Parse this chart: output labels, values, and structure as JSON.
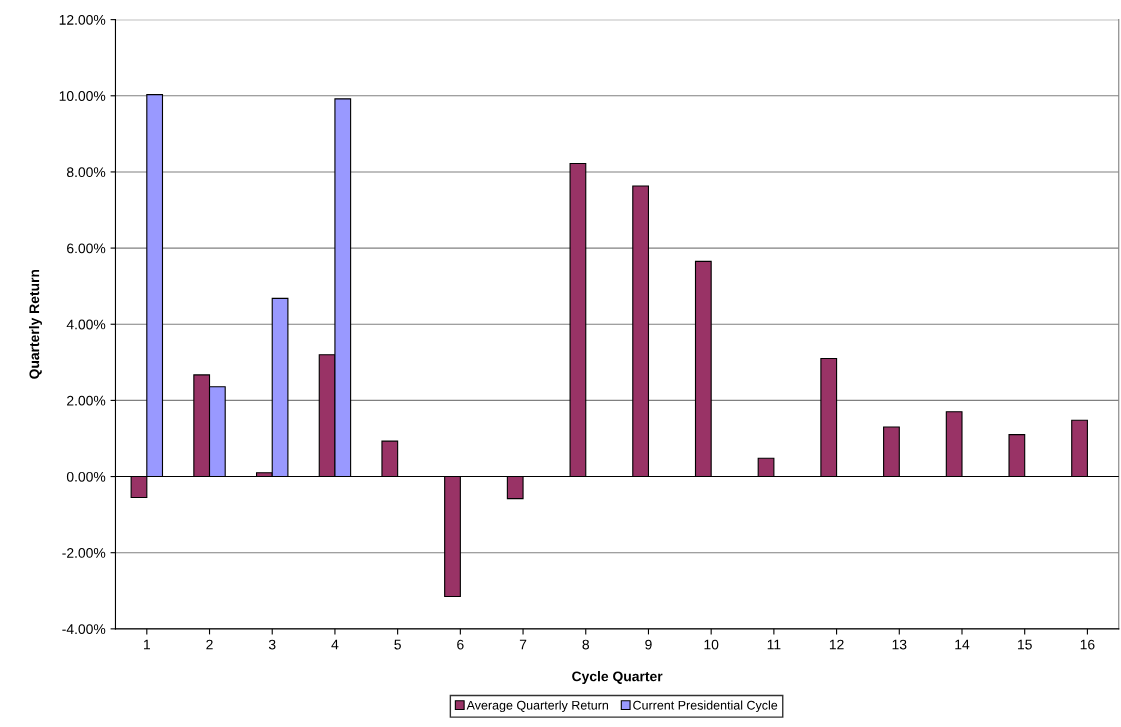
{
  "chart_data": {
    "type": "bar",
    "xlabel": "Cycle Quarter",
    "ylabel": "Quarterly Return",
    "categories": [
      "1",
      "2",
      "3",
      "4",
      "5",
      "6",
      "7",
      "8",
      "9",
      "10",
      "11",
      "12",
      "13",
      "14",
      "15",
      "16"
    ],
    "series": [
      {
        "name": "Average Quarterly Return",
        "color": "#993366",
        "values": [
          -0.55,
          2.67,
          0.1,
          3.2,
          0.93,
          -3.15,
          -0.58,
          8.22,
          7.63,
          5.65,
          0.48,
          3.1,
          1.3,
          1.7,
          1.1,
          1.48
        ]
      },
      {
        "name": "Current Presidential Cycle",
        "color": "#9999ff",
        "values": [
          10.03,
          2.36,
          4.68,
          9.92,
          null,
          null,
          null,
          null,
          null,
          null,
          null,
          null,
          null,
          null,
          null,
          null
        ]
      }
    ],
    "ylim": [
      -4,
      12
    ],
    "yticks": [
      {
        "value": -4,
        "label": "-4.00%"
      },
      {
        "value": -2,
        "label": "-2.00%"
      },
      {
        "value": 0,
        "label": "0.00%"
      },
      {
        "value": 2,
        "label": "2.00%"
      },
      {
        "value": 4,
        "label": "4.00%"
      },
      {
        "value": 6,
        "label": "6.00%"
      },
      {
        "value": 8,
        "label": "8.00%"
      },
      {
        "value": 10,
        "label": "10.00%"
      },
      {
        "value": 12,
        "label": "12.00%"
      }
    ],
    "grid": "y",
    "legend": "bottom"
  }
}
